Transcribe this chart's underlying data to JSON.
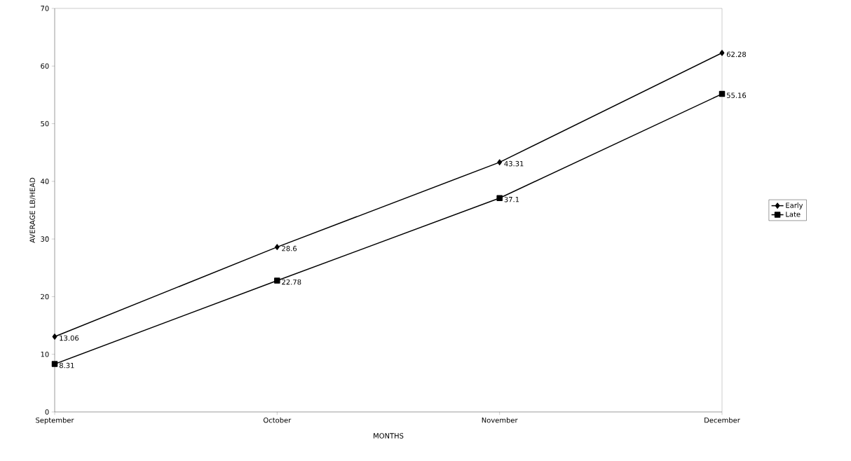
{
  "chart_data": {
    "type": "line",
    "xlabel": "MONTHS",
    "ylabel": "AVERAGE LB/HEAD",
    "categories": [
      "September",
      "October",
      "November",
      "December"
    ],
    "series": [
      {
        "name": "Early",
        "color": "#000000",
        "marker": "diamond",
        "values": [
          13.06,
          28.6,
          43.31,
          62.28
        ]
      },
      {
        "name": "Late",
        "color": "#000000",
        "marker": "square",
        "values": [
          8.31,
          22.78,
          37.1,
          55.16
        ]
      }
    ],
    "ylim": [
      0,
      70
    ],
    "yticks": [
      0,
      10,
      20,
      30,
      40,
      50,
      60,
      70
    ],
    "grid": false,
    "legend": "right",
    "data_labels": true,
    "line_style": "solid"
  }
}
